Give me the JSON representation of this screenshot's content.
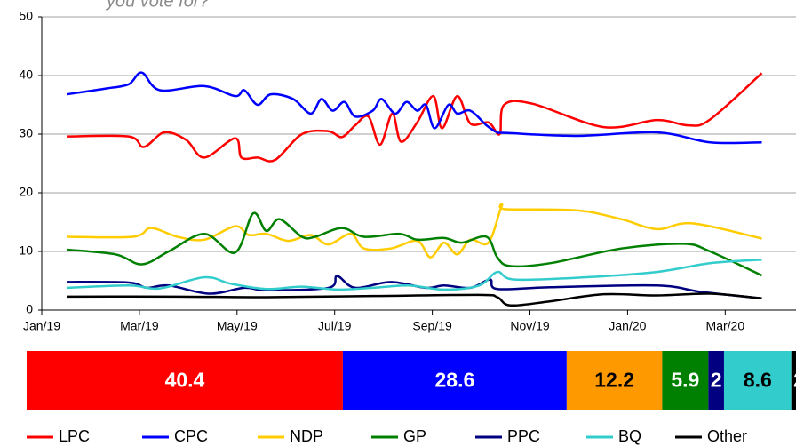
{
  "chart_data": {
    "type": "line",
    "title": "you vote for?",
    "xlim": [
      0,
      15.45
    ],
    "xticks": [
      {
        "value": 0,
        "label": "Jan/19"
      },
      {
        "value": 2,
        "label": "Mar/19"
      },
      {
        "value": 4,
        "label": "May/19"
      },
      {
        "value": 6,
        "label": "Jul/19"
      },
      {
        "value": 8,
        "label": "Sep/19"
      },
      {
        "value": 10,
        "label": "Nov/19"
      },
      {
        "value": 12,
        "label": "Jan/20"
      },
      {
        "value": 14,
        "label": "Mar/20"
      }
    ],
    "ylim": [
      0,
      50
    ],
    "yticks": [
      0,
      10,
      20,
      30,
      40,
      50
    ],
    "grid": true,
    "series": [
      {
        "name": "LPC",
        "color": "#ff0000",
        "x": [
          0.51,
          1.78,
          2.09,
          2.51,
          2.96,
          3.33,
          3.96,
          4.09,
          4.42,
          4.78,
          5.33,
          5.87,
          6.15,
          6.42,
          6.69,
          6.93,
          7.18,
          7.36,
          7.69,
          8.02,
          8.2,
          8.51,
          8.78,
          9.15,
          9.38,
          9.47,
          10.05,
          11.51,
          12.6,
          13.24,
          13.69,
          14.75
        ],
        "values": [
          29.6,
          29.6,
          27.8,
          30.3,
          29,
          26,
          29.3,
          26,
          26,
          25.6,
          30,
          30.5,
          29.5,
          31.5,
          33,
          28.2,
          33.5,
          28.7,
          32,
          36.5,
          31,
          36.5,
          31.8,
          32,
          30,
          35,
          35.2,
          31.2,
          32.4,
          31.5,
          32.5,
          40.4
        ]
      },
      {
        "name": "CPC",
        "color": "#0000ff",
        "x": [
          0.51,
          1.33,
          1.78,
          2.05,
          2.42,
          3.33,
          3.96,
          4.15,
          4.42,
          4.69,
          5.15,
          5.51,
          5.73,
          5.96,
          6.2,
          6.42,
          6.78,
          6.96,
          7.24,
          7.47,
          7.69,
          7.87,
          8.05,
          8.33,
          8.51,
          8.78,
          9.11,
          9.33,
          9.51,
          10.96,
          12.6,
          13.69,
          14.75
        ],
        "values": [
          36.8,
          37.8,
          38.5,
          40.5,
          37.5,
          38.2,
          36.5,
          37.5,
          35,
          36.8,
          36,
          33.5,
          36,
          34,
          35.5,
          33,
          34,
          36,
          33.5,
          35.5,
          34,
          35,
          31,
          35,
          33.5,
          34,
          31.5,
          30.3,
          30.2,
          29.7,
          30.3,
          28.6,
          28.6
        ]
      },
      {
        "name": "NDP",
        "color": "#ffcc00",
        "bar_color": "#ff9900",
        "x": [
          0.51,
          1.87,
          2.24,
          2.78,
          3.33,
          3.96,
          4.24,
          4.6,
          5.05,
          5.51,
          5.87,
          6.33,
          6.6,
          7.15,
          7.69,
          7.96,
          8.24,
          8.51,
          8.78,
          9.15,
          9.42,
          9.51,
          10.96,
          11.87,
          12.6,
          13.33,
          14.75
        ],
        "values": [
          12.5,
          12.5,
          14,
          12.5,
          12,
          14.3,
          12.8,
          13,
          11.8,
          12.8,
          11.2,
          13,
          10.5,
          10.5,
          11.8,
          9,
          11.5,
          9.5,
          12,
          11.5,
          17.7,
          17.2,
          17,
          15.5,
          13.8,
          14.8,
          12.2
        ]
      },
      {
        "name": "GP",
        "color": "#008000",
        "x": [
          0.51,
          1.51,
          2.05,
          2.6,
          3.33,
          3.96,
          4.33,
          4.6,
          4.87,
          5.33,
          5.6,
          6.15,
          6.6,
          7.33,
          7.69,
          8.24,
          8.6,
          9.11,
          9.33,
          9.6,
          10.42,
          11.87,
          13.15,
          13.69,
          14.75
        ],
        "values": [
          10.3,
          9.5,
          7.8,
          10,
          13,
          9.8,
          16.5,
          13.5,
          15.5,
          12.5,
          12.5,
          14,
          12.5,
          13,
          12,
          12.3,
          11.5,
          12.5,
          9,
          7.5,
          8,
          10.5,
          11.3,
          10,
          5.9
        ]
      },
      {
        "name": "PPC",
        "color": "#000080",
        "x": [
          0.51,
          1.78,
          2.15,
          2.6,
          3.42,
          4.15,
          4.6,
          5.87,
          6.05,
          6.42,
          7.15,
          7.87,
          8.24,
          8.78,
          9.18,
          9.33,
          10.42,
          12.6,
          13.51,
          14.75
        ],
        "values": [
          4.8,
          4.7,
          3.8,
          4.2,
          2.8,
          3.8,
          3.4,
          3.8,
          5.8,
          3.8,
          4.8,
          3.8,
          4.2,
          3.8,
          5.2,
          3.6,
          3.9,
          4.2,
          3.1,
          2
        ]
      },
      {
        "name": "BQ",
        "color": "#33cccc",
        "x": [
          0.51,
          1.78,
          2.42,
          3.33,
          3.87,
          4.6,
          5.33,
          6.05,
          6.78,
          7.51,
          8.24,
          8.96,
          9.33,
          9.69,
          11.15,
          12.6,
          13.69,
          14.75
        ],
        "values": [
          3.8,
          4.2,
          3.7,
          5.6,
          4.5,
          3.6,
          4,
          3.5,
          3.8,
          4.2,
          3.5,
          4.2,
          6.5,
          5.2,
          5.6,
          6.5,
          8,
          8.6
        ]
      },
      {
        "name": "Other",
        "color": "#000000",
        "x": [
          0.51,
          2.78,
          4.6,
          6.78,
          8.96,
          9.33,
          9.6,
          10.42,
          11.51,
          12.6,
          13.69,
          14.75
        ],
        "values": [
          2.3,
          2.3,
          2.2,
          2.4,
          2.6,
          2.2,
          0.8,
          1.5,
          2.7,
          2.5,
          2.8,
          2
        ]
      }
    ]
  }
}
